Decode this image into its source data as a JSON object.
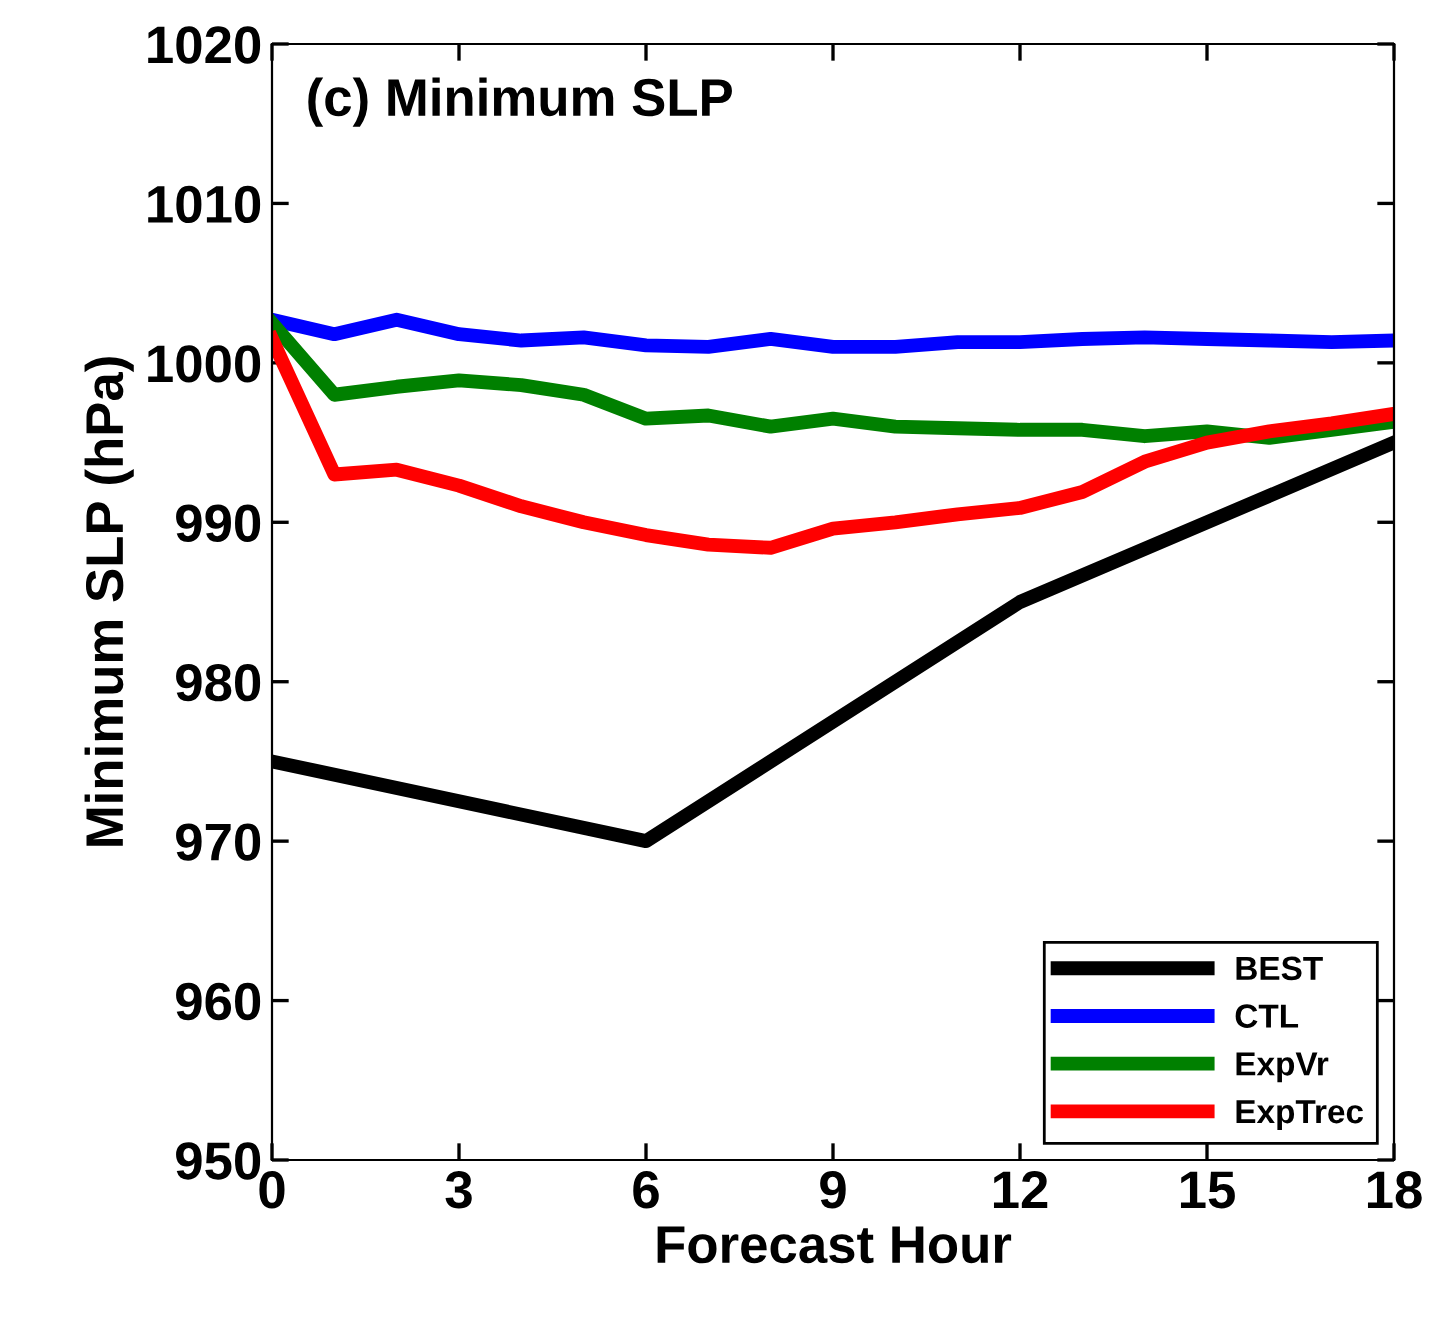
{
  "chart_data": {
    "type": "line",
    "title": "(c) Minimum SLP",
    "xlabel": "Forecast Hour",
    "ylabel": "Minimum SLP (hPa)",
    "xlim": [
      0,
      18
    ],
    "xticks": [
      0,
      3,
      6,
      9,
      12,
      15,
      18
    ],
    "ylim": [
      950,
      1020
    ],
    "yticks": [
      950,
      960,
      970,
      980,
      990,
      1000,
      1010,
      1020
    ],
    "grid": false,
    "legend": "bottom right",
    "x": [
      0,
      1,
      2,
      3,
      4,
      5,
      6,
      7,
      8,
      9,
      10,
      11,
      12,
      13,
      14,
      15,
      16,
      17,
      18
    ],
    "series": [
      {
        "name": "BEST",
        "color": "#000000",
        "x": [
          0,
          6,
          12,
          18
        ],
        "values": [
          975,
          970,
          985,
          995
        ]
      },
      {
        "name": "CTL",
        "color": "#0000ff",
        "values": [
          1002.7,
          1001.8,
          1002.7,
          1001.8,
          1001.4,
          1001.6,
          1001.1,
          1001.0,
          1001.5,
          1001.0,
          1001.0,
          1001.3,
          1001.3,
          1001.5,
          1001.6,
          1001.5,
          1001.4,
          1001.3,
          1001.4
        ]
      },
      {
        "name": "ExpVr",
        "color": "#008000",
        "values": [
          1002.5,
          998.0,
          998.5,
          998.9,
          998.6,
          998.0,
          996.5,
          996.7,
          996.0,
          996.5,
          996.0,
          995.9,
          995.8,
          995.8,
          995.4,
          995.7,
          995.3,
          995.8,
          996.3
        ]
      },
      {
        "name": "ExpTrec",
        "color": "#ff0000",
        "values": [
          1001.5,
          993.0,
          993.3,
          992.3,
          991.0,
          990.0,
          989.2,
          988.6,
          988.4,
          989.6,
          990.0,
          990.5,
          990.9,
          991.9,
          993.8,
          995.0,
          995.7,
          996.2,
          996.8
        ]
      }
    ]
  }
}
